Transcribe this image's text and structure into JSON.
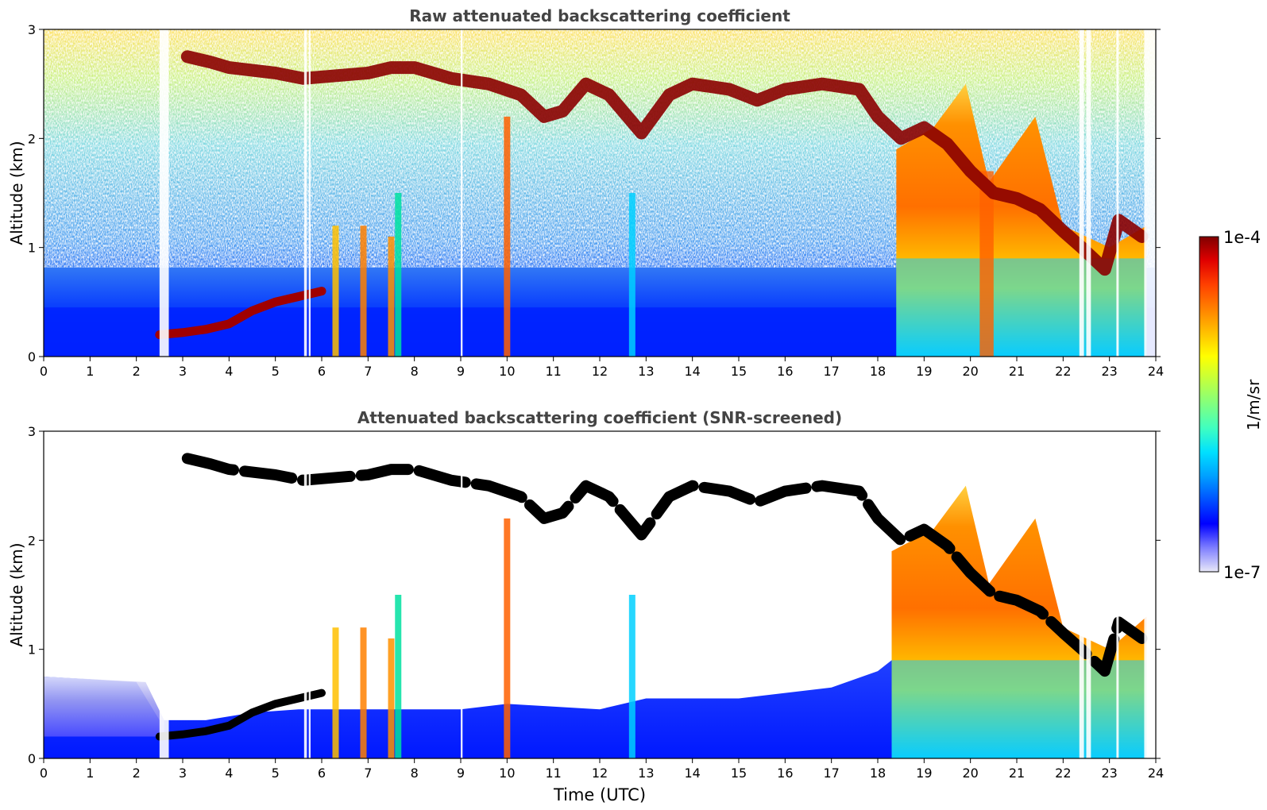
{
  "chart_data": [
    {
      "type": "heatmap",
      "title": "Raw attenuated backscattering coefficient",
      "xlabel": "",
      "ylabel": "Altitude (km)",
      "xlim": [
        0,
        24
      ],
      "ylim": [
        0,
        3
      ],
      "xticks": [
        "0",
        "1",
        "2",
        "3",
        "4",
        "5",
        "6",
        "7",
        "8",
        "9",
        "10",
        "11",
        "12",
        "13",
        "14",
        "15",
        "16",
        "17",
        "18",
        "19",
        "20",
        "21",
        "22",
        "23",
        "24"
      ],
      "yticks": [
        "0",
        "1",
        "2",
        "3"
      ],
      "cloud_layer_km": [
        [
          3.1,
          2.75
        ],
        [
          3.6,
          2.7
        ],
        [
          4.0,
          2.65
        ],
        [
          5.0,
          2.6
        ],
        [
          5.6,
          2.55
        ],
        [
          7.0,
          2.6
        ],
        [
          7.5,
          2.65
        ],
        [
          8.0,
          2.65
        ],
        [
          8.8,
          2.55
        ],
        [
          9.6,
          2.5
        ],
        [
          10.3,
          2.4
        ],
        [
          10.8,
          2.2
        ],
        [
          11.2,
          2.25
        ],
        [
          11.7,
          2.5
        ],
        [
          12.2,
          2.4
        ],
        [
          12.9,
          2.05
        ],
        [
          13.5,
          2.4
        ],
        [
          14.0,
          2.5
        ],
        [
          14.8,
          2.45
        ],
        [
          15.4,
          2.35
        ],
        [
          16.0,
          2.45
        ],
        [
          16.8,
          2.5
        ],
        [
          17.6,
          2.45
        ],
        [
          18.0,
          2.2
        ],
        [
          18.5,
          2.0
        ],
        [
          19.0,
          2.1
        ],
        [
          19.5,
          1.95
        ],
        [
          20.0,
          1.7
        ],
        [
          20.5,
          1.5
        ],
        [
          21.0,
          1.45
        ],
        [
          21.5,
          1.35
        ],
        [
          22.0,
          1.15
        ],
        [
          22.4,
          1.0
        ],
        [
          22.9,
          0.8
        ],
        [
          23.2,
          1.25
        ],
        [
          23.7,
          1.1
        ]
      ],
      "aerosol_layer_km": [
        [
          2.5,
          0.2
        ],
        [
          3.0,
          0.22
        ],
        [
          3.5,
          0.25
        ],
        [
          4.0,
          0.3
        ],
        [
          4.5,
          0.42
        ],
        [
          5.0,
          0.5
        ],
        [
          5.5,
          0.55
        ],
        [
          6.0,
          0.6
        ]
      ],
      "missing_data_hours": [
        [
          2.5,
          2.7
        ],
        [
          5.62,
          5.68
        ],
        [
          5.72,
          5.76
        ],
        [
          9.0,
          9.04
        ],
        [
          22.35,
          22.45
        ],
        [
          22.5,
          22.6
        ],
        [
          23.15,
          23.2
        ],
        [
          23.75,
          24
        ]
      ]
    },
    {
      "type": "heatmap",
      "title": "Attenuated backscattering coefficient (SNR-screened)",
      "xlabel": "Time (UTC)",
      "ylabel": "Altitude (km)",
      "xlim": [
        0,
        24
      ],
      "ylim": [
        0,
        3
      ],
      "xticks": [
        "0",
        "1",
        "2",
        "3",
        "4",
        "5",
        "6",
        "7",
        "8",
        "9",
        "10",
        "11",
        "12",
        "13",
        "14",
        "15",
        "16",
        "17",
        "18",
        "19",
        "20",
        "21",
        "22",
        "23",
        "24"
      ],
      "yticks": [
        "0",
        "1",
        "2",
        "3"
      ],
      "screened_boundary_km": [
        [
          0,
          0.75
        ],
        [
          2.0,
          0.7
        ],
        [
          2.5,
          0.35
        ],
        [
          3.5,
          0.35
        ],
        [
          4.5,
          0.42
        ],
        [
          5.5,
          0.45
        ],
        [
          7.0,
          0.45
        ],
        [
          9.0,
          0.45
        ],
        [
          10.0,
          0.5
        ],
        [
          12.0,
          0.45
        ],
        [
          13.0,
          0.55
        ],
        [
          15.0,
          0.55
        ],
        [
          16.0,
          0.6
        ],
        [
          17.0,
          0.65
        ],
        [
          18.0,
          0.8
        ],
        [
          18.3,
          0.9
        ]
      ]
    }
  ],
  "colorbar": {
    "label": "1/m/sr",
    "max_label": "1e-4",
    "min_label": "1e-7",
    "scale": "log",
    "colormap": "jet",
    "colors": [
      "#e8e8f8",
      "#7f7fff",
      "#0000ff",
      "#0050ff",
      "#00a0ff",
      "#00e0ff",
      "#40ffc0",
      "#80ff80",
      "#c0ff40",
      "#ffff00",
      "#ffc000",
      "#ff8000",
      "#ff4000",
      "#e00000",
      "#800000"
    ]
  }
}
